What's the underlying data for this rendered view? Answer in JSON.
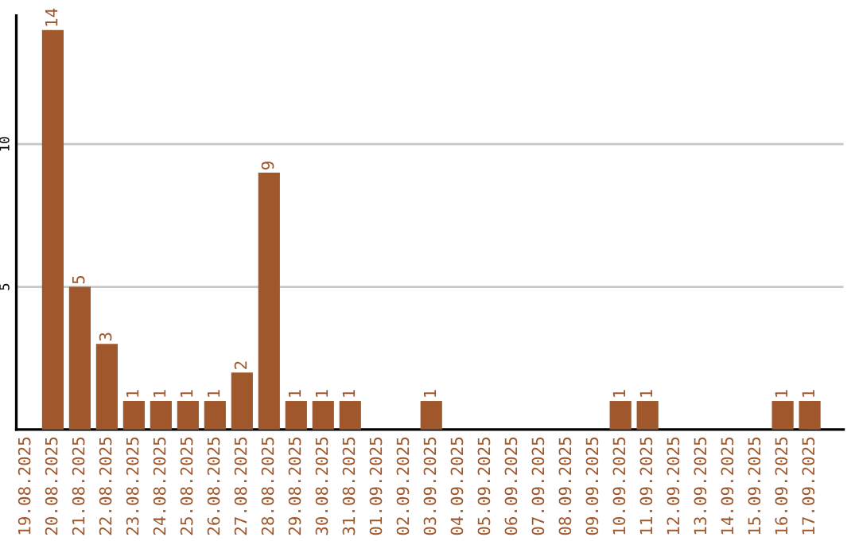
{
  "chart_data": {
    "type": "bar",
    "categories": [
      "19.08.2025",
      "20.08.2025",
      "21.08.2025",
      "22.08.2025",
      "23.08.2025",
      "24.08.2025",
      "25.08.2025",
      "26.08.2025",
      "27.08.2025",
      "28.08.2025",
      "29.08.2025",
      "30.08.2025",
      "31.08.2025",
      "01.09.2025",
      "02.09.2025",
      "03.09.2025",
      "04.09.2025",
      "05.09.2025",
      "06.09.2025",
      "07.09.2025",
      "08.09.2025",
      "09.09.2025",
      "10.09.2025",
      "11.09.2025",
      "12.09.2025",
      "13.09.2025",
      "14.09.2025",
      "15.09.2025",
      "16.09.2025",
      "17.09.2025"
    ],
    "values": [
      0,
      14,
      5,
      3,
      1,
      1,
      1,
      1,
      2,
      9,
      1,
      1,
      1,
      0,
      0,
      1,
      0,
      0,
      0,
      0,
      0,
      0,
      1,
      1,
      0,
      0,
      0,
      0,
      1,
      1
    ],
    "value_labels": [
      null,
      "14",
      "5",
      "3",
      "1",
      "1",
      "1",
      "1",
      "2",
      "9",
      "1",
      "1",
      "1",
      null,
      null,
      "1",
      null,
      null,
      null,
      null,
      null,
      null,
      "1",
      "1",
      null,
      null,
      null,
      null,
      "1",
      "1"
    ],
    "color": "#a0572b",
    "ylim": [
      0,
      14.5
    ],
    "yticks": [
      5,
      10
    ],
    "grid": "y",
    "legend": false
  }
}
